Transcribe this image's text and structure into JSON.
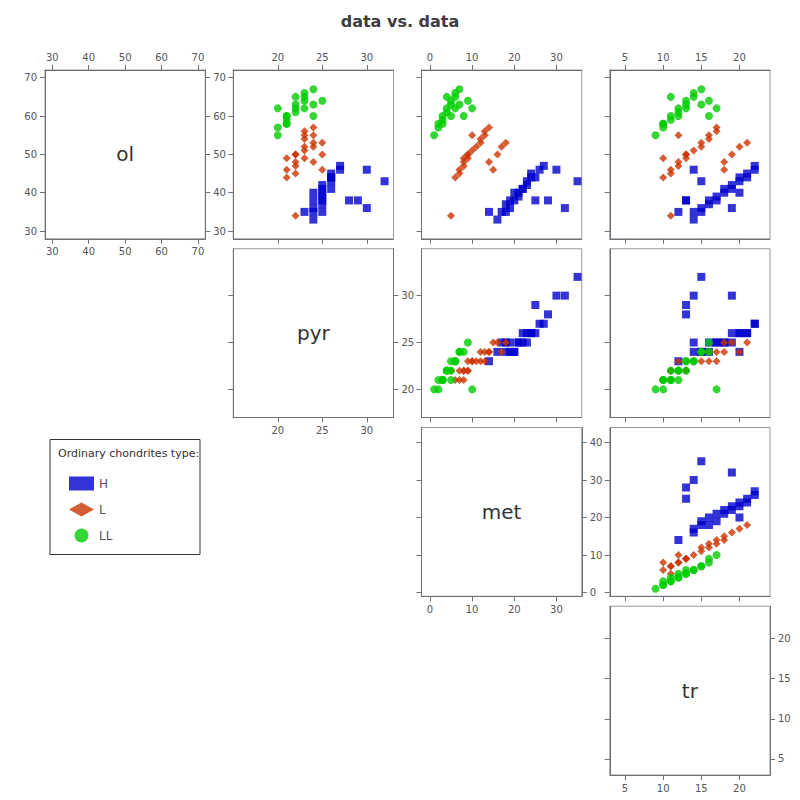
{
  "chart_data": {
    "type": "scatter_matrix",
    "title": "data vs. data",
    "legend_title": "Ordinary chondrites type:",
    "variables": [
      "ol",
      "pyr",
      "met",
      "tr"
    ],
    "axes": {
      "ol": {
        "xlim": [
          28,
          72
        ],
        "ylim": [
          28,
          72
        ],
        "xticks": [
          30,
          40,
          50,
          60,
          70
        ],
        "yticks": [
          30,
          40,
          50,
          60,
          70
        ]
      },
      "pyr": {
        "xlim": [
          15,
          33
        ],
        "ylim": [
          17,
          35
        ],
        "xticks": [
          20,
          25,
          30
        ],
        "yticks": [
          20,
          25,
          30
        ]
      },
      "met": {
        "xlim": [
          -2,
          36
        ],
        "ylim": [
          -1,
          44
        ],
        "xticks": [
          0,
          10,
          20,
          30
        ],
        "yticks": [
          0,
          10,
          20,
          30,
          40
        ]
      },
      "tr": {
        "xlim": [
          3,
          24
        ],
        "ylim": [
          3,
          24
        ],
        "xticks": [
          5,
          10,
          15,
          20
        ],
        "yticks": [
          5,
          10,
          15,
          20
        ]
      }
    },
    "series": [
      {
        "name": "H",
        "color": "#0000CC",
        "marker": "square",
        "values": {
          "ol": [
            33,
            35,
            35,
            36,
            37,
            38,
            38,
            39,
            40,
            41,
            41,
            42,
            43,
            44,
            44,
            45,
            46,
            47,
            38,
            36,
            43,
            46,
            38,
            35,
            40
          ],
          "pyr": [
            24,
            25,
            24,
            24,
            25,
            24,
            25,
            25,
            25,
            25,
            26,
            25,
            26,
            26,
            26,
            26,
            27,
            27,
            28,
            30,
            32,
            30,
            29,
            23,
            24
          ],
          "met": [
            16,
            17,
            18,
            19,
            18,
            20,
            19,
            21,
            21,
            22,
            22,
            23,
            23,
            24,
            25,
            24,
            26,
            27,
            28,
            32,
            35,
            30,
            25,
            14,
            20
          ],
          "tr": [
            14,
            14,
            15,
            15,
            16,
            16,
            17,
            17,
            18,
            18,
            19,
            19,
            20,
            20,
            21,
            21,
            22,
            22,
            13,
            19,
            15,
            14,
            13,
            12,
            20
          ]
        }
      },
      {
        "name": "L",
        "color": "#CC3300",
        "marker": "diamond",
        "values": {
          "ol": [
            34,
            44,
            45,
            46,
            47,
            48,
            49,
            50,
            51,
            52,
            53,
            54,
            55,
            56,
            57,
            48,
            46,
            50,
            52,
            53,
            55,
            50,
            49
          ],
          "pyr": [
            22,
            21,
            22,
            21,
            22,
            22,
            23,
            22,
            23,
            23,
            24,
            23,
            24,
            23,
            24,
            24,
            25,
            25,
            24,
            25,
            23,
            22,
            21
          ],
          "met": [
            5,
            6,
            7,
            7,
            8,
            8,
            9,
            9,
            10,
            11,
            12,
            12,
            13,
            13,
            14,
            14,
            15,
            16,
            17,
            18,
            10,
            9,
            8
          ],
          "tr": [
            11,
            10,
            11,
            11,
            12,
            12,
            13,
            13,
            14,
            15,
            15,
            16,
            16,
            17,
            17,
            18,
            18,
            19,
            20,
            21,
            12,
            13,
            10
          ]
        }
      },
      {
        "name": "LL",
        "color": "#00CC00",
        "marker": "circle",
        "values": {
          "ol": [
            55,
            57,
            58,
            59,
            60,
            61,
            62,
            63,
            64,
            65,
            66,
            67,
            63,
            60,
            64,
            62,
            58,
            65,
            60,
            62
          ],
          "pyr": [
            20,
            20,
            21,
            21,
            21,
            22,
            22,
            22,
            23,
            23,
            23,
            24,
            24,
            24,
            25,
            20,
            21,
            22,
            21,
            23
          ],
          "met": [
            1,
            2,
            2,
            3,
            3,
            4,
            4,
            5,
            5,
            6,
            6,
            7,
            7,
            8,
            9,
            10,
            3,
            4,
            5,
            6
          ],
          "tr": [
            9,
            10,
            10,
            11,
            11,
            12,
            12,
            13,
            13,
            14,
            14,
            15,
            15,
            16,
            16,
            17,
            10,
            11,
            12,
            13
          ]
        }
      }
    ],
    "grid": false,
    "legend": "lower left"
  }
}
